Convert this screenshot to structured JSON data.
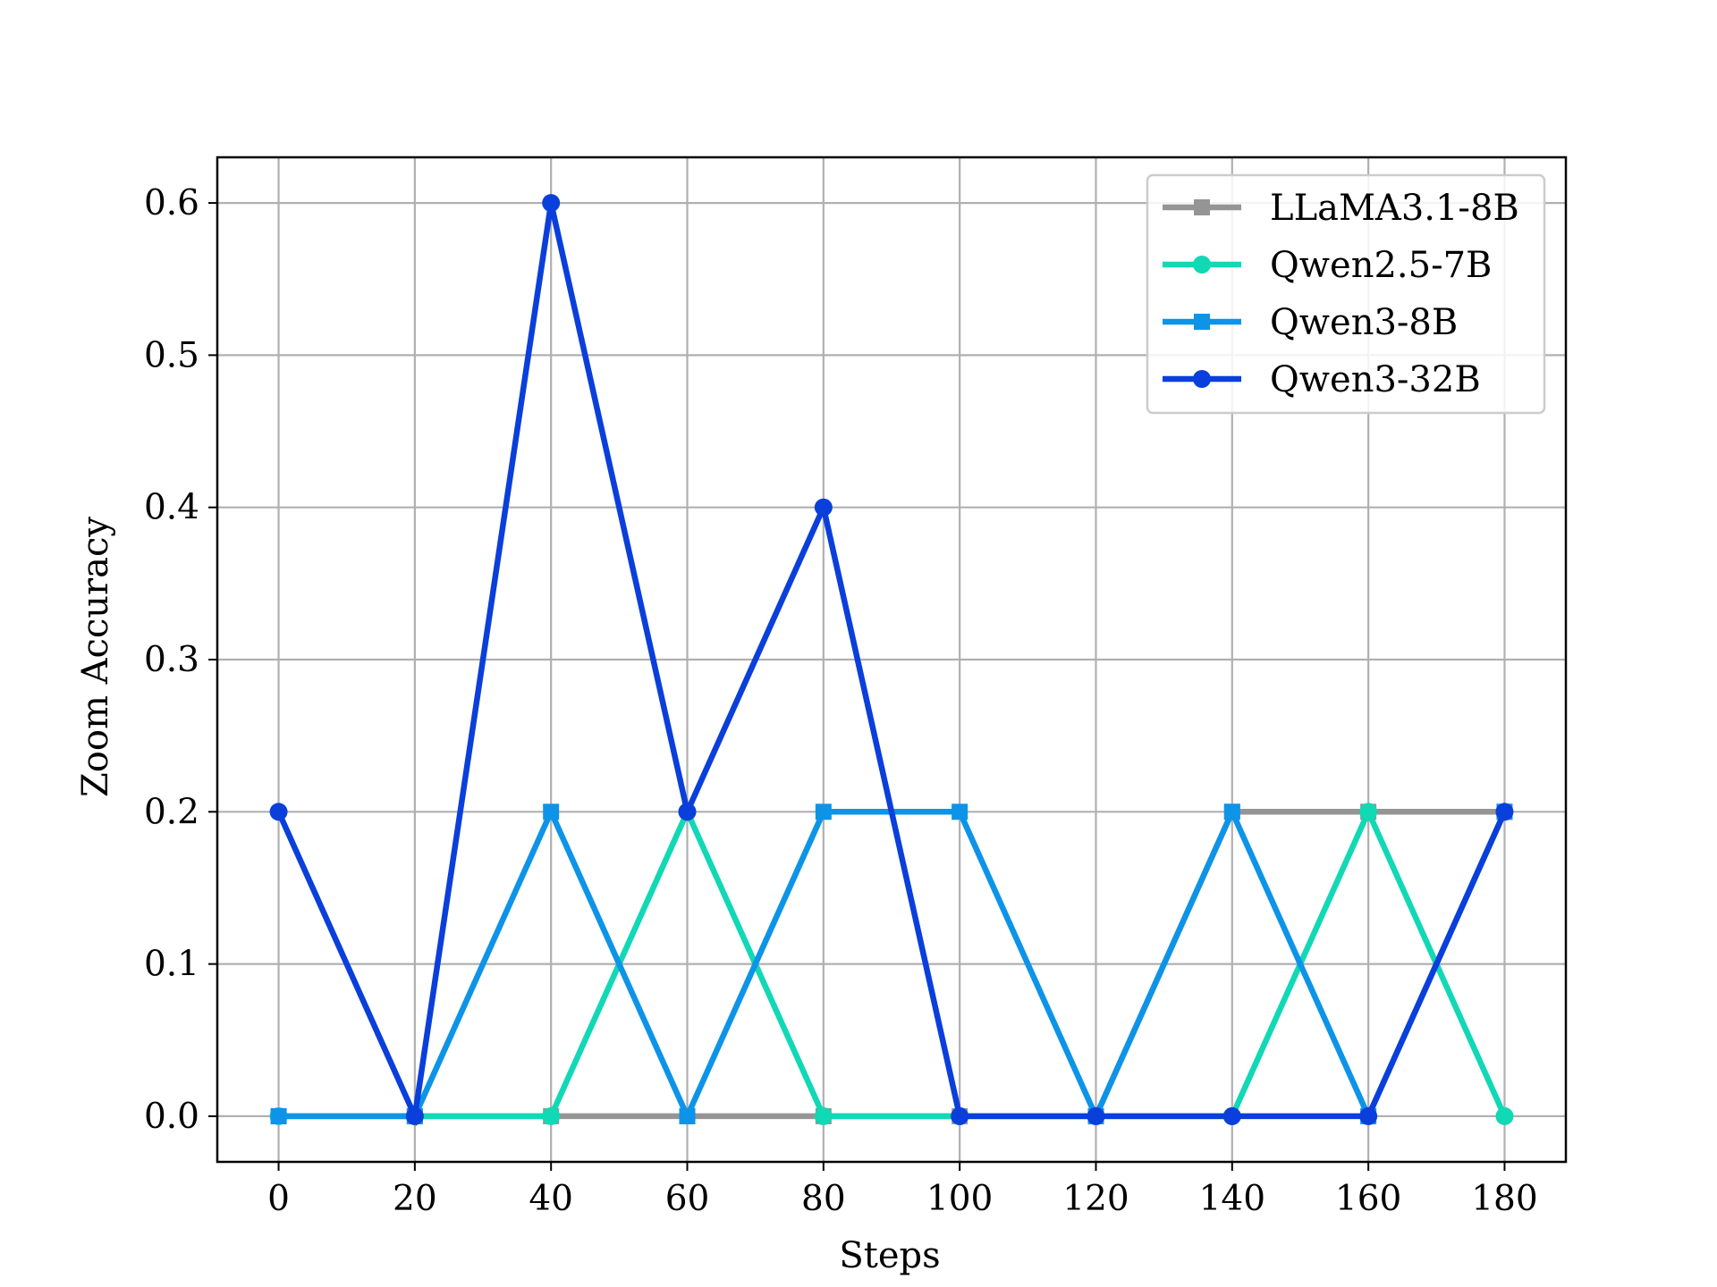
{
  "chart_data": {
    "type": "line",
    "title": "",
    "xlabel": "Steps",
    "ylabel": "Zoom Accuracy",
    "x": [
      0,
      20,
      40,
      60,
      80,
      100,
      120,
      140,
      160,
      180
    ],
    "xlim": [
      -9,
      189
    ],
    "ylim": [
      -0.03,
      0.63
    ],
    "xticks": [
      0,
      20,
      40,
      60,
      80,
      100,
      120,
      140,
      160,
      180
    ],
    "yticks": [
      0.0,
      0.1,
      0.2,
      0.3,
      0.4,
      0.5,
      0.6
    ],
    "xtick_labels": [
      "0",
      "20",
      "40",
      "60",
      "80",
      "100",
      "120",
      "140",
      "160",
      "180"
    ],
    "ytick_labels": [
      "0.0",
      "0.1",
      "0.2",
      "0.3",
      "0.4",
      "0.5",
      "0.6"
    ],
    "grid": true,
    "legend_position": "top-right",
    "series": [
      {
        "name": "LLaMA3.1-8B",
        "color": "#959595",
        "marker": "square",
        "values": [
          0,
          0,
          0,
          0,
          0,
          0,
          0,
          0.2,
          0.2,
          0.2
        ]
      },
      {
        "name": "Qwen2.5-7B",
        "color": "#11D8B5",
        "marker": "circle",
        "values": [
          0,
          0,
          0,
          0.2,
          0,
          0,
          0,
          0,
          0.2,
          0
        ]
      },
      {
        "name": "Qwen3-8B",
        "color": "#0D94E8",
        "marker": "square",
        "values": [
          0,
          0,
          0.2,
          0,
          0.2,
          0.2,
          0,
          0.2,
          0,
          0.2
        ]
      },
      {
        "name": "Qwen3-32B",
        "color": "#0A3FDB",
        "marker": "circle",
        "values": [
          0.2,
          0,
          0.6,
          0.2,
          0.4,
          0,
          0,
          0,
          0,
          0.2
        ]
      }
    ]
  }
}
